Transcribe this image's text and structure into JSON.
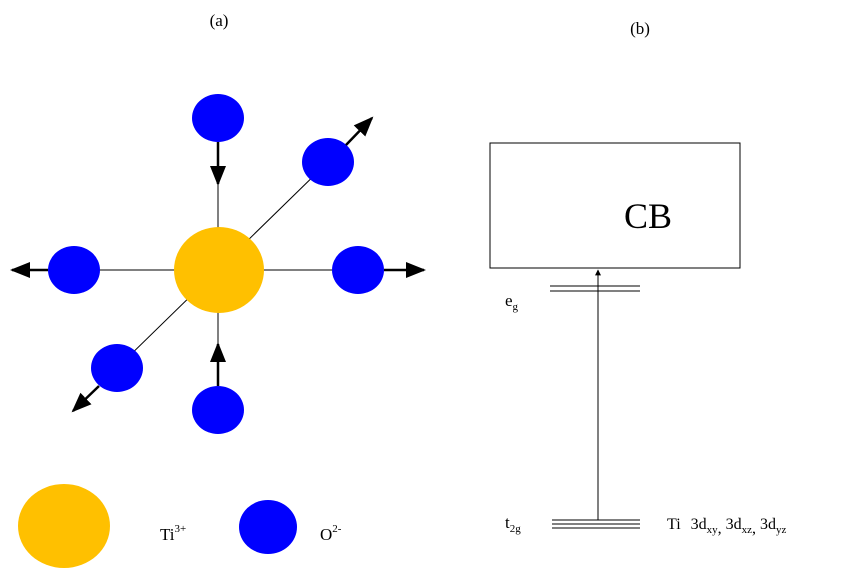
{
  "panels": [
    {
      "label": "(a)"
    },
    {
      "label": "(b)"
    }
  ],
  "band": {
    "label": "CB"
  },
  "levels": [
    {
      "base": "e",
      "sub": "g"
    },
    {
      "base": "t",
      "sub": "2g",
      "orbitals": {
        "atom": "Ti",
        "separator": ", ",
        "items": [
          {
            "base": "3d",
            "sub": "xy"
          },
          {
            "base": "3d",
            "sub": "xz"
          },
          {
            "base": "3d",
            "sub": "yz"
          }
        ]
      }
    }
  ],
  "legend": [
    {
      "base": "Ti",
      "sup": "3+"
    },
    {
      "base": "O",
      "sup": "2-"
    }
  ]
}
